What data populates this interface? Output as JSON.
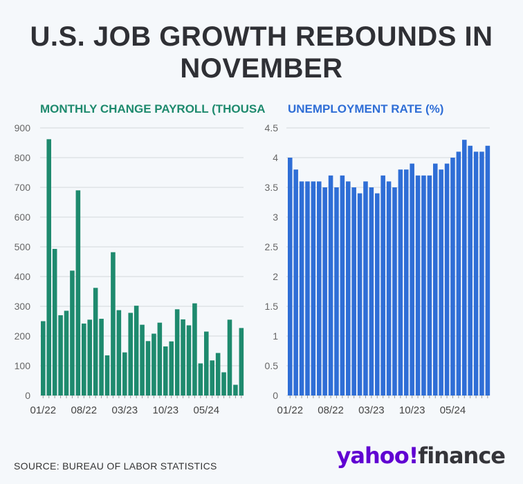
{
  "title": "U.S. JOB GROWTH REBOUNDS IN NOVEMBER",
  "source": "SOURCE: BUREAU OF LABOR STATISTICS",
  "logo": {
    "part1": "yahoo!",
    "part2": "finance"
  },
  "colors": {
    "payroll": "#1e8a6e",
    "unemployment": "#2f6ed6",
    "grid": "#d4d7db",
    "background": "#f5f8fb"
  },
  "chart_data": [
    {
      "type": "bar",
      "title": "MONTHLY CHANGE PAYROLL (THOUSANDS)",
      "xlabel": "",
      "ylabel": "",
      "ylim": [
        0,
        900
      ],
      "yticks": [
        "0",
        "100",
        "200",
        "300",
        "400",
        "500",
        "600",
        "700",
        "800",
        "900"
      ],
      "xticks": [
        "01/22",
        "08/22",
        "03/23",
        "10/23",
        "05/24"
      ],
      "xtick_index": [
        0,
        7,
        14,
        21,
        28
      ],
      "grid": true,
      "values": [
        250,
        862,
        493,
        270,
        285,
        420,
        690,
        242,
        255,
        362,
        258,
        135,
        482,
        287,
        145,
        278,
        302,
        238,
        183,
        208,
        245,
        165,
        182,
        290,
        256,
        236,
        310,
        108,
        215,
        118,
        143,
        78,
        255,
        36,
        227
      ]
    },
    {
      "type": "bar",
      "title": "UNEMPLOYMENT RATE (%)",
      "xlabel": "",
      "ylabel": "",
      "ylim": [
        0,
        4.5
      ],
      "yticks": [
        "0",
        "0.5",
        "1",
        "1.5",
        "2",
        "2.5",
        "3",
        "3.5",
        "4",
        "4.5"
      ],
      "xticks": [
        "01/22",
        "08/22",
        "03/23",
        "10/23",
        "05/24"
      ],
      "xtick_index": [
        0,
        7,
        14,
        21,
        28
      ],
      "grid": true,
      "values": [
        4.0,
        3.8,
        3.6,
        3.6,
        3.6,
        3.6,
        3.5,
        3.7,
        3.5,
        3.7,
        3.6,
        3.5,
        3.4,
        3.6,
        3.5,
        3.4,
        3.7,
        3.6,
        3.5,
        3.8,
        3.8,
        3.9,
        3.7,
        3.7,
        3.7,
        3.9,
        3.8,
        3.9,
        4.0,
        4.1,
        4.3,
        4.2,
        4.1,
        4.1,
        4.2
      ]
    }
  ]
}
